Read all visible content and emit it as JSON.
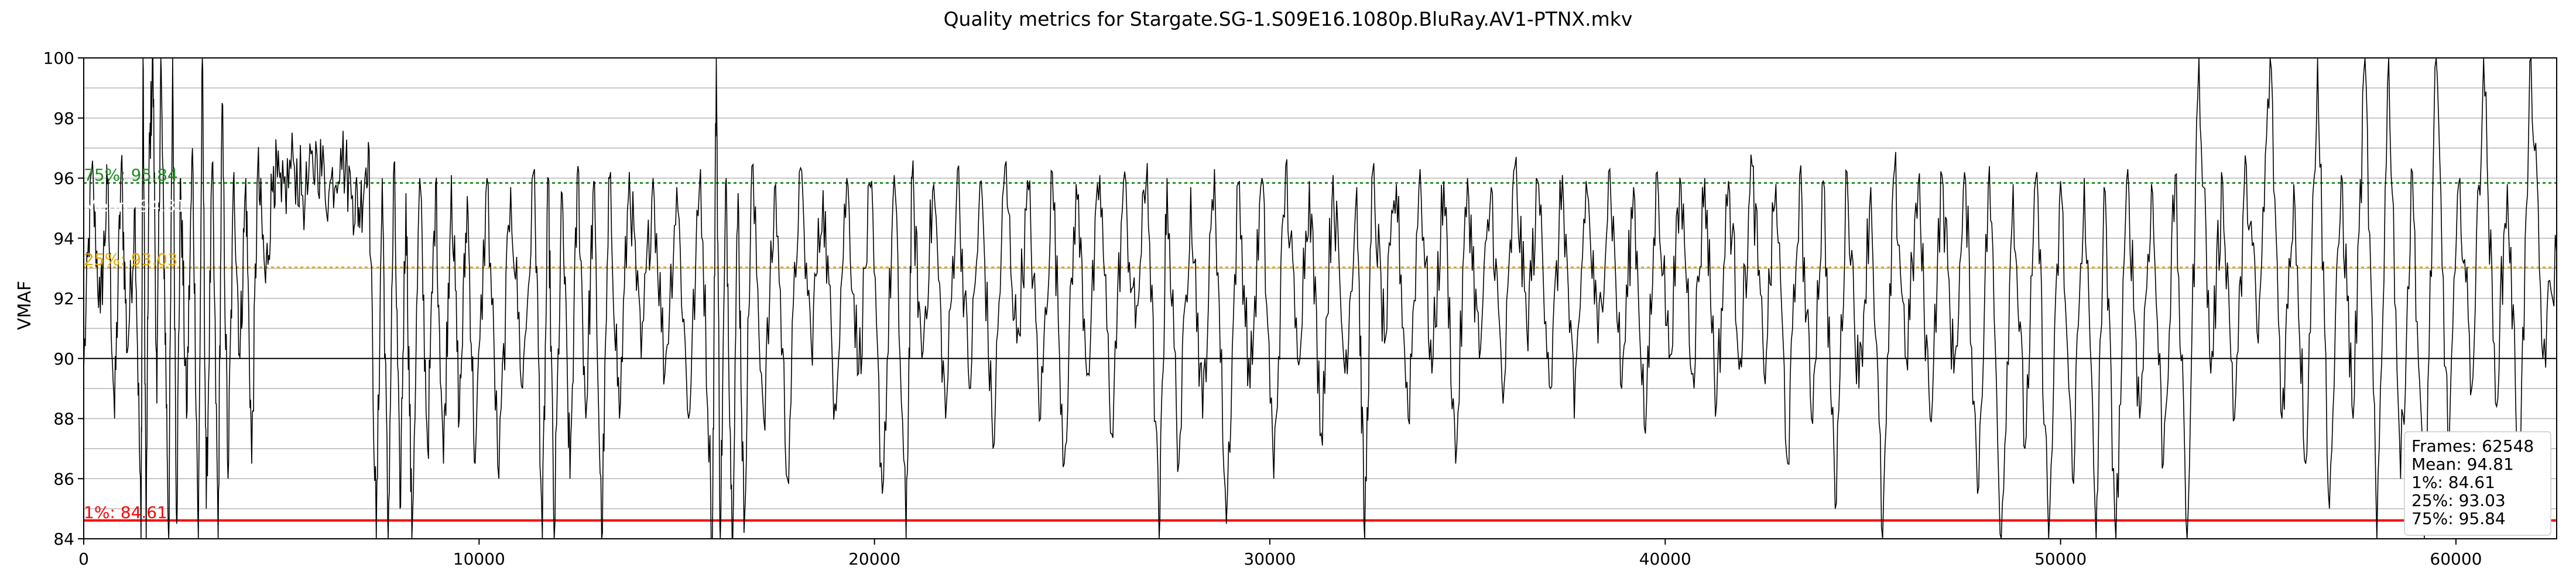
{
  "chart_data": {
    "type": "line",
    "title": "Quality metrics for Stargate.SG-1.S09E16.1080p.BluRay.AV1-PTNX.mkv",
    "xlabel": "",
    "ylabel": "VMAF",
    "xlim": [
      0,
      62548
    ],
    "ylim": [
      84,
      100
    ],
    "x_ticks": [
      "0",
      "10000",
      "20000",
      "30000",
      "40000",
      "50000",
      "60000"
    ],
    "y_ticks": [
      "84",
      "86",
      "88",
      "90",
      "92",
      "94",
      "96",
      "98",
      "100"
    ],
    "grid": true,
    "series": [
      {
        "color": "#000000",
        "points": [
          [
            0,
            89.6
          ],
          [
            200,
            96.2
          ],
          [
            420,
            91.5
          ],
          [
            600,
            95.8
          ],
          [
            780,
            88.0
          ],
          [
            950,
            96.5
          ],
          [
            1100,
            90.2
          ],
          [
            1300,
            95.0
          ],
          [
            1450,
            84.0
          ],
          [
            1500,
            100.0
          ],
          [
            1580,
            84.0
          ],
          [
            1650,
            96.2
          ],
          [
            1750,
            100.0
          ],
          [
            1850,
            88.5
          ],
          [
            1950,
            100.0
          ],
          [
            2050,
            92.0
          ],
          [
            2150,
            84.0
          ],
          [
            2250,
            100.0
          ],
          [
            2350,
            84.5
          ],
          [
            2450,
            96.0
          ],
          [
            2600,
            88.0
          ],
          [
            2750,
            97.0
          ],
          [
            2900,
            84.0
          ],
          [
            3000,
            100.0
          ],
          [
            3100,
            85.0
          ],
          [
            3250,
            96.5
          ],
          [
            3400,
            84.0
          ],
          [
            3500,
            98.5
          ],
          [
            3650,
            86.0
          ],
          [
            3800,
            96.2
          ],
          [
            3950,
            90.0
          ],
          [
            4100,
            96.0
          ],
          [
            4250,
            86.5
          ],
          [
            4400,
            96.3
          ],
          [
            4600,
            92.5
          ],
          [
            4800,
            96.4
          ],
          [
            5000,
            95.2
          ],
          [
            5300,
            96.6
          ],
          [
            5600,
            95.3
          ],
          [
            5900,
            96.8
          ],
          [
            6200,
            95.5
          ],
          [
            6500,
            97.0
          ],
          [
            6800,
            95.4
          ],
          [
            7000,
            95.0
          ],
          [
            7200,
            97.2
          ],
          [
            7400,
            84.0
          ],
          [
            7550,
            96.0
          ],
          [
            7700,
            84.0
          ],
          [
            7850,
            96.5
          ],
          [
            8000,
            85.0
          ],
          [
            8150,
            95.5
          ],
          [
            8300,
            84.0
          ],
          [
            8500,
            96.0
          ],
          [
            8700,
            87.0
          ],
          [
            8900,
            95.8
          ],
          [
            9100,
            86.5
          ],
          [
            9300,
            96.1
          ],
          [
            9500,
            88.0
          ],
          [
            9700,
            95.4
          ],
          [
            9900,
            86.5
          ],
          [
            10200,
            96.0
          ],
          [
            10500,
            86.0
          ],
          [
            10800,
            95.7
          ],
          [
            11100,
            89.0
          ],
          [
            11400,
            96.3
          ],
          [
            11600,
            84.0
          ],
          [
            11750,
            96.0
          ],
          [
            11900,
            84.0
          ],
          [
            12100,
            95.5
          ],
          [
            12300,
            86.0
          ],
          [
            12500,
            96.4
          ],
          [
            12700,
            88.0
          ],
          [
            12900,
            95.9
          ],
          [
            13100,
            84.0
          ],
          [
            13300,
            96.0
          ],
          [
            13550,
            88.0
          ],
          [
            13800,
            96.2
          ],
          [
            14100,
            90.0
          ],
          [
            14400,
            96.0
          ],
          [
            14700,
            89.5
          ],
          [
            15000,
            95.7
          ],
          [
            15300,
            88.0
          ],
          [
            15600,
            96.3
          ],
          [
            15900,
            84.0
          ],
          [
            16000,
            100.0
          ],
          [
            16100,
            84.0
          ],
          [
            16250,
            96.0
          ],
          [
            16400,
            84.0
          ],
          [
            16550,
            95.5
          ],
          [
            16700,
            84.2
          ],
          [
            16900,
            96.4
          ],
          [
            17200,
            88.0
          ],
          [
            17500,
            95.8
          ],
          [
            17800,
            86.0
          ],
          [
            18100,
            96.2
          ],
          [
            18400,
            90.5
          ],
          [
            18700,
            95.6
          ],
          [
            19000,
            88.5
          ],
          [
            19300,
            96.0
          ],
          [
            19600,
            89.5
          ],
          [
            19900,
            95.7
          ],
          [
            20200,
            85.5
          ],
          [
            20500,
            96.1
          ],
          [
            20800,
            84.0
          ],
          [
            20950,
            96.0
          ],
          [
            21200,
            90.0
          ],
          [
            21500,
            95.8
          ],
          [
            21800,
            88.0
          ],
          [
            22100,
            96.3
          ],
          [
            22400,
            89.0
          ],
          [
            22700,
            95.9
          ],
          [
            23000,
            87.0
          ],
          [
            23300,
            96.4
          ],
          [
            23600,
            90.5
          ],
          [
            23900,
            95.6
          ],
          [
            24200,
            88.0
          ],
          [
            24500,
            96.2
          ],
          [
            24800,
            86.5
          ],
          [
            25100,
            95.8
          ],
          [
            25400,
            89.5
          ],
          [
            25700,
            96.1
          ],
          [
            26000,
            87.5
          ],
          [
            26300,
            95.9
          ],
          [
            26600,
            91.0
          ],
          [
            26900,
            96.5
          ],
          [
            27200,
            84.0
          ],
          [
            27400,
            96.0
          ],
          [
            27700,
            86.5
          ],
          [
            28000,
            95.7
          ],
          [
            28300,
            88.0
          ],
          [
            28600,
            96.3
          ],
          [
            28900,
            84.5
          ],
          [
            29200,
            95.8
          ],
          [
            29500,
            89.0
          ],
          [
            29800,
            96.0
          ],
          [
            30100,
            86.0
          ],
          [
            30400,
            96.4
          ],
          [
            30700,
            90.0
          ],
          [
            31000,
            95.9
          ],
          [
            31300,
            87.5
          ],
          [
            31600,
            96.1
          ],
          [
            31900,
            89.5
          ],
          [
            32200,
            95.7
          ],
          [
            32400,
            84.0
          ],
          [
            32600,
            96.2
          ],
          [
            32900,
            90.5
          ],
          [
            33200,
            95.8
          ],
          [
            33500,
            88.0
          ],
          [
            33800,
            96.3
          ],
          [
            34100,
            89.5
          ],
          [
            34400,
            95.9
          ],
          [
            34700,
            86.5
          ],
          [
            35000,
            96.0
          ],
          [
            35300,
            90.0
          ],
          [
            35600,
            95.7
          ],
          [
            35900,
            88.5
          ],
          [
            36200,
            96.4
          ],
          [
            36500,
            91.0
          ],
          [
            36800,
            95.8
          ],
          [
            37100,
            89.0
          ],
          [
            37400,
            96.1
          ],
          [
            37700,
            88.0
          ],
          [
            38000,
            95.9
          ],
          [
            38300,
            90.5
          ],
          [
            38600,
            96.3
          ],
          [
            38900,
            89.0
          ],
          [
            39200,
            95.7
          ],
          [
            39500,
            87.5
          ],
          [
            39800,
            96.2
          ],
          [
            40100,
            90.0
          ],
          [
            40400,
            95.8
          ],
          [
            40700,
            89.5
          ],
          [
            41000,
            96.0
          ],
          [
            41300,
            88.5
          ],
          [
            41600,
            95.9
          ],
          [
            41900,
            90.0
          ],
          [
            42200,
            96.4
          ],
          [
            42500,
            89.5
          ],
          [
            42800,
            95.8
          ],
          [
            43100,
            86.5
          ],
          [
            43400,
            96.1
          ],
          [
            43700,
            88.0
          ],
          [
            44000,
            95.9
          ],
          [
            44300,
            85.0
          ],
          [
            44600,
            96.2
          ],
          [
            44900,
            89.0
          ],
          [
            45200,
            95.7
          ],
          [
            45500,
            84.0
          ],
          [
            45800,
            96.3
          ],
          [
            46100,
            90.0
          ],
          [
            46400,
            95.8
          ],
          [
            46700,
            88.0
          ],
          [
            47000,
            96.1
          ],
          [
            47300,
            89.5
          ],
          [
            47600,
            95.9
          ],
          [
            47900,
            85.5
          ],
          [
            48200,
            96.4
          ],
          [
            48500,
            84.0
          ],
          [
            48800,
            95.8
          ],
          [
            49100,
            87.0
          ],
          [
            49400,
            96.2
          ],
          [
            49700,
            84.0
          ],
          [
            50000,
            95.9
          ],
          [
            50300,
            86.0
          ],
          [
            50600,
            96.0
          ],
          [
            50900,
            84.0
          ],
          [
            51100,
            95.7
          ],
          [
            51400,
            84.0
          ],
          [
            51700,
            96.3
          ],
          [
            52000,
            88.0
          ],
          [
            52300,
            95.8
          ],
          [
            52600,
            86.5
          ],
          [
            52900,
            96.1
          ],
          [
            53200,
            84.0
          ],
          [
            53500,
            100.0
          ],
          [
            53800,
            89.5
          ],
          [
            54100,
            95.9
          ],
          [
            54400,
            88.0
          ],
          [
            54700,
            96.4
          ],
          [
            55000,
            90.5
          ],
          [
            55300,
            100.0
          ],
          [
            55600,
            88.0
          ],
          [
            55900,
            95.8
          ],
          [
            56200,
            86.5
          ],
          [
            56500,
            100.0
          ],
          [
            56800,
            85.0
          ],
          [
            57100,
            96.1
          ],
          [
            57400,
            88.0
          ],
          [
            57700,
            100.0
          ],
          [
            58000,
            84.0
          ],
          [
            58300,
            100.0
          ],
          [
            58600,
            86.0
          ],
          [
            58900,
            96.2
          ],
          [
            59200,
            84.0
          ],
          [
            59500,
            100.0
          ],
          [
            59800,
            87.0
          ],
          [
            60100,
            96.0
          ],
          [
            60400,
            89.0
          ],
          [
            60700,
            100.0
          ],
          [
            61000,
            88.5
          ],
          [
            61300,
            95.8
          ],
          [
            61600,
            86.0
          ],
          [
            61900,
            100.0
          ],
          [
            62200,
            90.0
          ],
          [
            62548,
            93.5
          ]
        ]
      }
    ],
    "reference_lines": [
      {
        "value": 95.84,
        "label": "75%: 95.84",
        "color": "#228b22",
        "style": "dotted"
      },
      {
        "value": 94.81,
        "label": "Mean: 94.81",
        "color": "#ffffff",
        "style": "dotted"
      },
      {
        "value": 93.03,
        "label": "25%: 93.03",
        "color": "#e6a800",
        "style": "dotted"
      },
      {
        "value": 84.61,
        "label": "1%: 84.61",
        "color": "#ff0000",
        "style": "solid"
      }
    ],
    "stats_box": {
      "position": "bottom-right",
      "lines": [
        "Frames: 62548",
        "Mean: 94.81",
        "1%: 84.61",
        "25%: 93.03",
        "75%: 95.84"
      ]
    }
  }
}
